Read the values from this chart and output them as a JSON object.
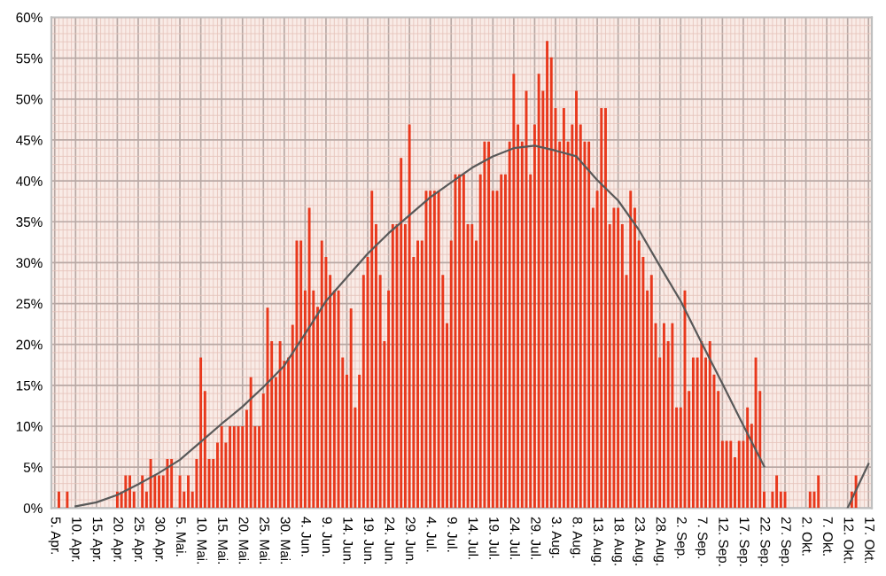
{
  "chart_data": {
    "type": "bar",
    "categories": [
      "5. Apr.",
      null,
      null,
      null,
      null,
      "10. Apr.",
      null,
      null,
      null,
      null,
      "15. Apr.",
      null,
      null,
      null,
      null,
      "20. Apr.",
      null,
      null,
      null,
      null,
      "25. Apr.",
      null,
      null,
      null,
      null,
      "30. Apr.",
      null,
      null,
      null,
      null,
      "5. Mai.",
      null,
      null,
      null,
      null,
      "10. Mai.",
      null,
      null,
      null,
      null,
      "15. Mai.",
      null,
      null,
      null,
      null,
      "20. Mai.",
      null,
      null,
      null,
      null,
      "25. Mai.",
      null,
      null,
      null,
      null,
      "30. Mai.",
      null,
      null,
      null,
      null,
      "4. Jun.",
      null,
      null,
      null,
      null,
      "9. Jun.",
      null,
      null,
      null,
      null,
      "14. Jun.",
      null,
      null,
      null,
      null,
      "19. Jun.",
      null,
      null,
      null,
      null,
      "24. Jun.",
      null,
      null,
      null,
      null,
      "29. Jun.",
      null,
      null,
      null,
      null,
      "4. Jul.",
      null,
      null,
      null,
      null,
      "9. Jul.",
      null,
      null,
      null,
      null,
      "14. Jul.",
      null,
      null,
      null,
      null,
      "19. Jul.",
      null,
      null,
      null,
      null,
      "24. Jul.",
      null,
      null,
      null,
      null,
      "29. Jul.",
      null,
      null,
      null,
      null,
      "3. Aug.",
      null,
      null,
      null,
      null,
      "8. Aug.",
      null,
      null,
      null,
      null,
      "13. Aug.",
      null,
      null,
      null,
      null,
      "18. Aug.",
      null,
      null,
      null,
      null,
      "23. Aug.",
      null,
      null,
      null,
      null,
      "28. Aug.",
      null,
      null,
      null,
      null,
      "2. Sep.",
      null,
      null,
      null,
      null,
      "7. Sep.",
      null,
      null,
      null,
      null,
      "12. Sep.",
      null,
      null,
      null,
      null,
      "17. Sep.",
      null,
      null,
      null,
      null,
      "22. Sep.",
      null,
      null,
      null,
      null,
      "27. Sep.",
      null,
      null,
      null,
      null,
      "2. Okt.",
      null,
      null,
      null,
      null,
      "7. Okt.",
      null,
      null,
      null,
      null,
      "12. Okt.",
      null,
      null,
      null,
      null,
      "17. Okt."
    ],
    "series": [
      {
        "color": "#e8381c",
        "values": [
          0,
          2,
          0,
          2,
          0,
          0,
          0,
          0,
          0,
          0,
          0,
          0,
          0,
          0,
          0,
          2,
          2,
          4,
          4,
          2,
          0,
          4,
          2,
          6,
          4,
          4,
          4,
          6,
          6,
          0,
          4,
          2,
          4,
          2,
          6,
          18.4,
          14.3,
          6,
          6,
          8,
          10,
          8,
          10,
          10,
          10,
          10,
          12,
          16,
          10,
          10,
          14,
          24.5,
          20.4,
          16,
          20.4,
          18,
          18.4,
          22.4,
          32.7,
          32.7,
          26.6,
          36.7,
          26.6,
          24.6,
          32.7,
          30.7,
          28.5,
          26.6,
          26.6,
          18.4,
          16.3,
          24.4,
          12.3,
          16.3,
          28.5,
          30.7,
          38.8,
          34.7,
          28.5,
          20.4,
          26.6,
          34.7,
          34.7,
          42.8,
          34.7,
          46.9,
          30.7,
          32.7,
          32.7,
          38.8,
          38.8,
          38.8,
          38.8,
          28.5,
          22.6,
          32.7,
          40.8,
          40.8,
          40.8,
          34.7,
          34.7,
          32.7,
          40.8,
          44.8,
          44.8,
          38.8,
          38.8,
          40.8,
          40.8,
          44.8,
          53.1,
          46.9,
          44.8,
          51,
          40.8,
          46.9,
          53.1,
          51,
          57.1,
          55.1,
          48.9,
          44.8,
          48.9,
          44.8,
          46.9,
          51,
          46.9,
          44.8,
          44.8,
          36.7,
          38.8,
          48.9,
          48.9,
          34.7,
          36.7,
          36.7,
          34.7,
          28.5,
          38.8,
          36.7,
          32.7,
          30.7,
          26.6,
          28.5,
          22.6,
          18.4,
          22.6,
          20.4,
          22.6,
          12.3,
          12.3,
          26.6,
          14.3,
          18.4,
          18.4,
          20.4,
          18.4,
          20.4,
          16.3,
          14.3,
          8.2,
          8.2,
          8.2,
          6.2,
          8.2,
          8.2,
          12.3,
          10.3,
          18.4,
          14.3,
          2,
          0,
          2,
          4,
          2,
          2,
          0,
          0,
          0,
          0,
          0,
          2,
          2,
          4,
          0,
          0,
          0,
          0,
          0,
          0,
          0,
          2,
          4,
          0,
          0,
          0
        ]
      },
      {
        "type": "line",
        "color": "#595959",
        "x": [
          "10. Apr.",
          "15. Apr.",
          "20. Apr.",
          "25. Apr.",
          "30. Apr.",
          "5. Mai.",
          "10. Mai.",
          "15. Mai.",
          "20. Mai.",
          "25. Mai.",
          "30. Mai.",
          "4. Jun.",
          "9. Jun.",
          "14. Jun.",
          "19. Jun.",
          "24. Jun.",
          "29. Jun.",
          "4. Jul.",
          "9. Jul.",
          "14. Jul.",
          "19. Jul.",
          "24. Jul.",
          "29. Jul.",
          "3. Aug.",
          "8. Aug.",
          "13. Aug.",
          "18. Aug.",
          "23. Aug.",
          "28. Aug.",
          "2. Sep.",
          "7. Sep.",
          "12. Sep.",
          "17. Sep.",
          "22. Sep.",
          "2. Okt.",
          "12. Okt.",
          "17. Okt."
        ],
        "values": [
          0.2,
          0.7,
          1.6,
          2.9,
          4.3,
          5.9,
          8.1,
          10.3,
          12.4,
          14.8,
          17.4,
          21.3,
          25.3,
          28.2,
          31.1,
          33.6,
          35.8,
          38,
          39.8,
          41.6,
          43,
          44,
          44.3,
          43.7,
          43,
          40.1,
          37.6,
          34,
          29.6,
          25.3,
          20.2,
          15.2,
          10.1,
          5.1,
          null,
          0,
          5.4
        ]
      }
    ],
    "ylim": [
      0,
      60
    ],
    "yticks": [
      {
        "value": 0,
        "label": "0%"
      },
      {
        "value": 5,
        "label": "5%"
      },
      {
        "value": 10,
        "label": "10%"
      },
      {
        "value": 15,
        "label": "15%"
      },
      {
        "value": 20,
        "label": "20%"
      },
      {
        "value": 25,
        "label": "25%"
      },
      {
        "value": 30,
        "label": "30%"
      },
      {
        "value": 35,
        "label": "35%"
      },
      {
        "value": 40,
        "label": "40%"
      },
      {
        "value": 45,
        "label": "45%"
      },
      {
        "value": 50,
        "label": "50%"
      },
      {
        "value": 55,
        "label": "55%"
      },
      {
        "value": 60,
        "label": "60%"
      }
    ],
    "grid": true
  }
}
